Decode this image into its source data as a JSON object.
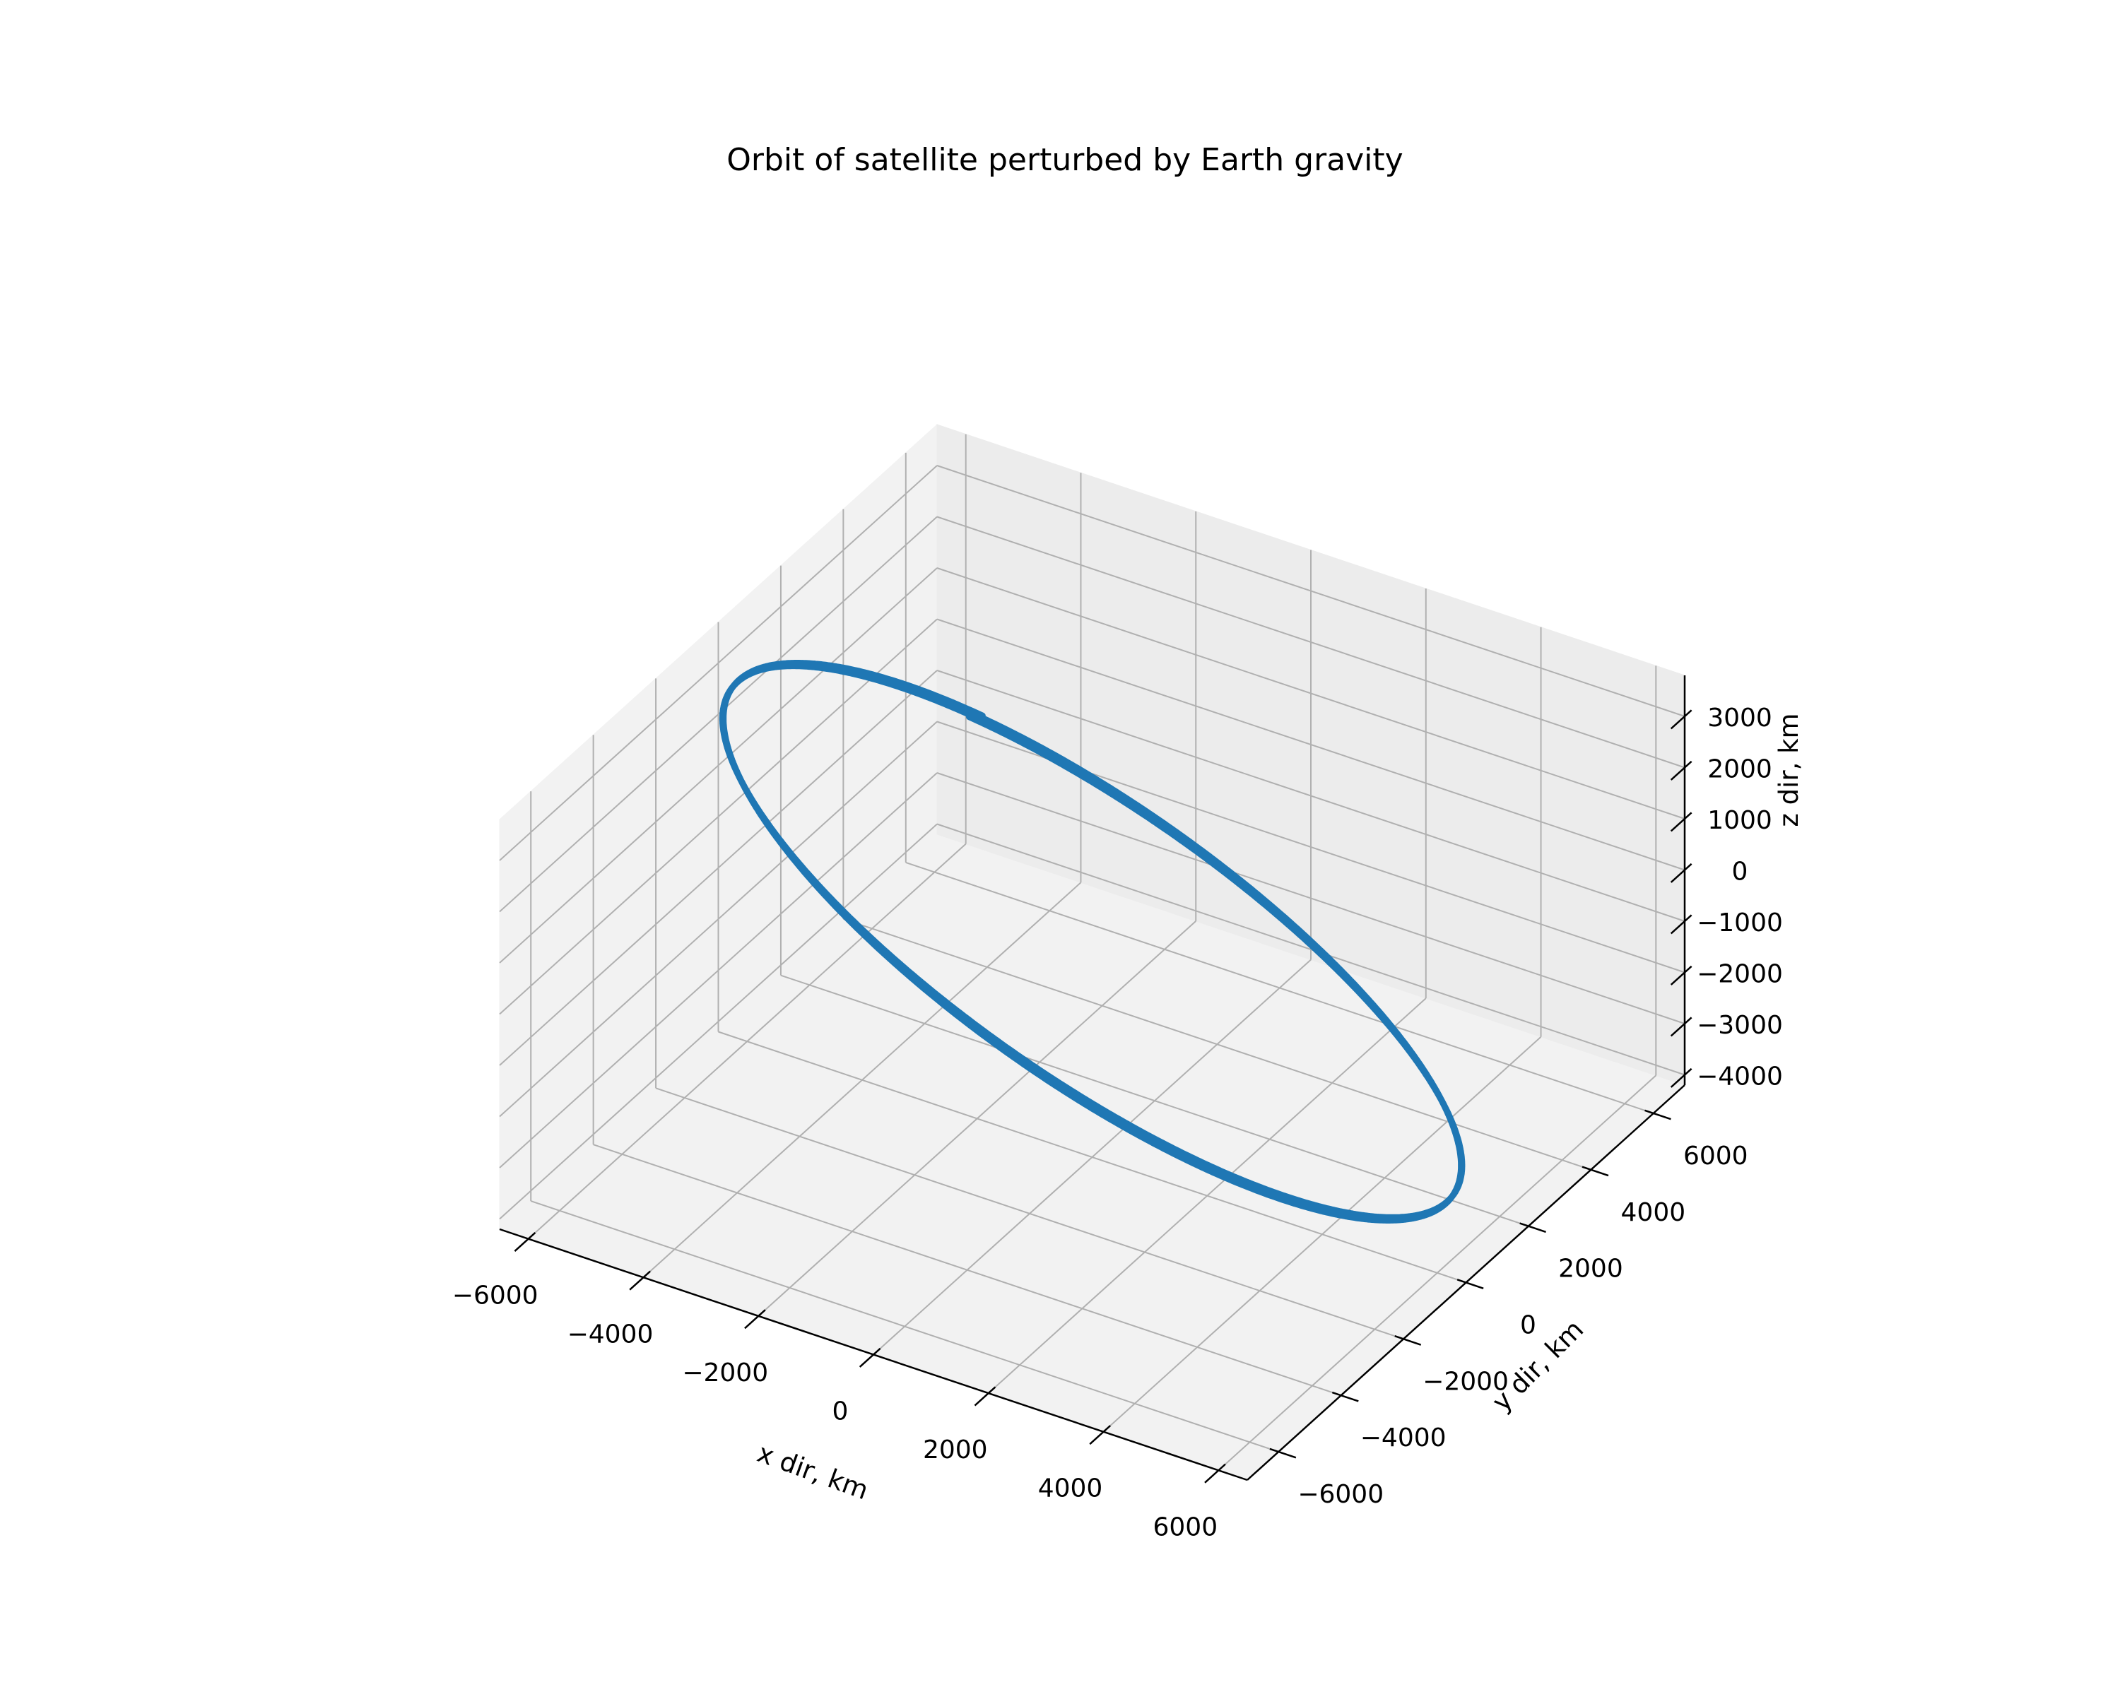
{
  "chart_data": {
    "type": "line3d",
    "title": "Orbit of satellite perturbed by Earth gravity",
    "xlabel": "x dir, km",
    "ylabel": "y dir, km",
    "zlabel": "z dir, km",
    "xlim": [
      -6500,
      6500
    ],
    "ylim": [
      -7000,
      7000
    ],
    "zlim": [
      -4200,
      3800
    ],
    "xticks": [
      -6000,
      -4000,
      -2000,
      0,
      2000,
      4000,
      6000
    ],
    "yticks": [
      -6000,
      -4000,
      -2000,
      0,
      2000,
      4000,
      6000
    ],
    "zticks": [
      -4000,
      -3000,
      -2000,
      -1000,
      0,
      1000,
      2000,
      3000
    ],
    "xtick_labels": [
      "−6000",
      "−4000",
      "−2000",
      "0",
      "2000",
      "4000",
      "6000"
    ],
    "ytick_labels": [
      "−6000",
      "−4000",
      "−2000",
      "0",
      "2000",
      "4000",
      "6000"
    ],
    "ztick_labels": [
      "−4000",
      "−3000",
      "−2000",
      "−1000",
      "0",
      "1000",
      "2000",
      "3000"
    ],
    "grid": true,
    "series": [
      {
        "color": "#1f77b4",
        "orbit": {
          "radius_km": 6700,
          "inclination_deg": 34,
          "raan_deg": 133,
          "revolutions": 3,
          "raan_drift_deg": 0.6
        }
      }
    ]
  }
}
